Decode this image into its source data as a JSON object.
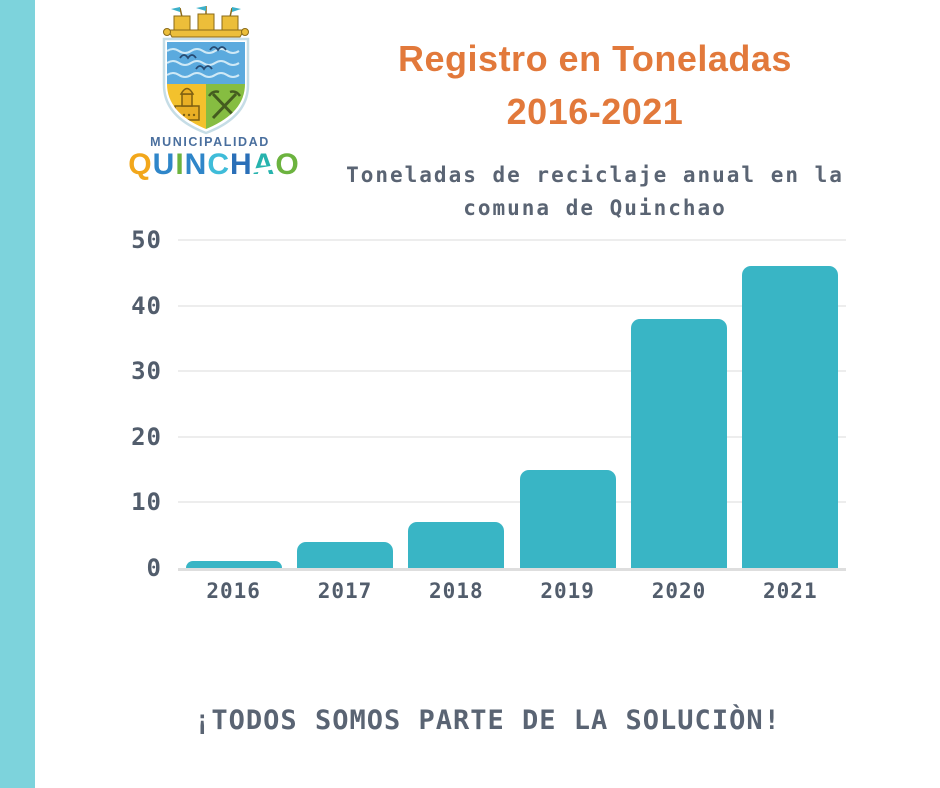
{
  "page": {
    "background": "#ffffff",
    "accent_strip_color": "#7dd3dc"
  },
  "logo": {
    "org_line": "MUNICIPALIDAD",
    "wordmark_letters": [
      {
        "ch": "Q",
        "color": "#f2a71b"
      },
      {
        "ch": "U",
        "color": "#2f86c9"
      },
      {
        "ch": "I",
        "color": "#6cb33f"
      },
      {
        "ch": "N",
        "color": "#2f86c9"
      },
      {
        "ch": "C",
        "color": "#3fbcd9"
      },
      {
        "ch": "H",
        "color": "#2a6fb8"
      },
      {
        "ch": "A",
        "color": "#27b3ae",
        "wave": true
      },
      {
        "ch": "O",
        "color": "#6cb33f"
      }
    ]
  },
  "header": {
    "title_line1": "Registro en Toneladas",
    "title_line2": "2016-2021",
    "title_color": "#e2793b",
    "subtitle_line1": "Toneladas de reciclaje anual en la",
    "subtitle_line2": "comuna de Quinchao"
  },
  "chart_data": {
    "type": "bar",
    "title": "Toneladas de reciclaje anual en la comuna de Quinchao",
    "categories": [
      "2016",
      "2017",
      "2018",
      "2019",
      "2020",
      "2021"
    ],
    "values": [
      1,
      4,
      7,
      15,
      38,
      46
    ],
    "xlabel": "",
    "ylabel": "",
    "ylim": [
      0,
      50
    ],
    "yticks": [
      0,
      10,
      20,
      30,
      40,
      50
    ],
    "grid": true,
    "legend": false,
    "bar_color": "#39b5c5",
    "gridline_color": "#ededed",
    "tick_label_color": "#525d6c"
  },
  "footer": {
    "slogan": "¡TODOS SOMOS PARTE DE LA SOLUCIÒN!"
  }
}
